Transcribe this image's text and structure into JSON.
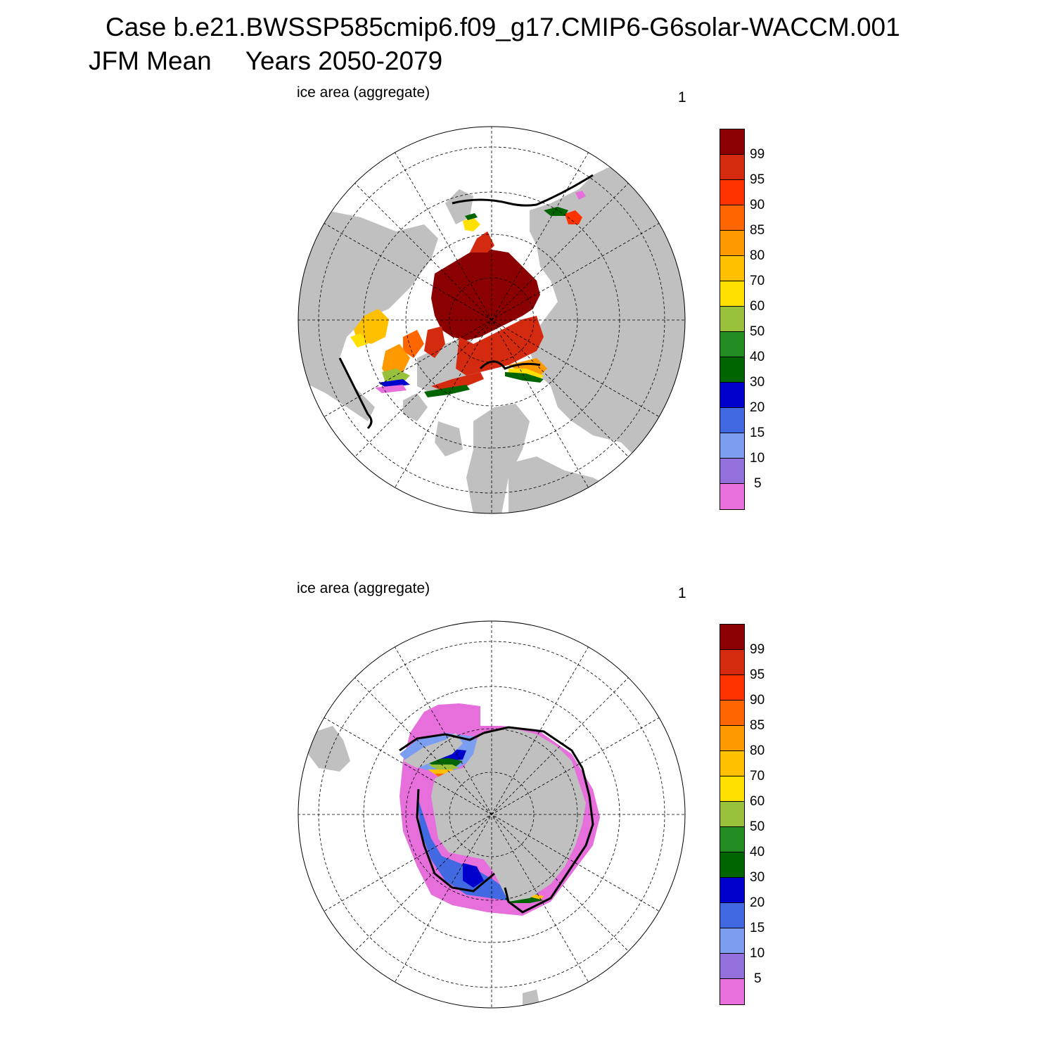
{
  "header": {
    "case_line": "Case b.e21.BWSSP585cmip6.f09_g17.CMIP6-G6solar-WACCM.001",
    "season": "JFM Mean",
    "years": "Years 2050-2079"
  },
  "panels": [
    {
      "id": "north",
      "label": "ice area  (aggregate)",
      "number": "1"
    },
    {
      "id": "south",
      "label": "ice area  (aggregate)",
      "number": "1"
    }
  ],
  "colorbar": {
    "labels": [
      "99",
      "95",
      "90",
      "85",
      "80",
      "70",
      "60",
      "50",
      "40",
      "30",
      "20",
      "15",
      "10",
      "5"
    ],
    "colors": [
      "#8b0000",
      "#d42a10",
      "#ff3300",
      "#ff6600",
      "#ff9900",
      "#ffc000",
      "#ffe000",
      "#99c03a",
      "#228b22",
      "#006400",
      "#0000cd",
      "#4169e1",
      "#7b9ef0",
      "#9370db",
      "#e66fdc"
    ]
  },
  "colors": {
    "land": "#c0c0c0",
    "ocean": "#ffffff",
    "edge": "#000000"
  }
}
